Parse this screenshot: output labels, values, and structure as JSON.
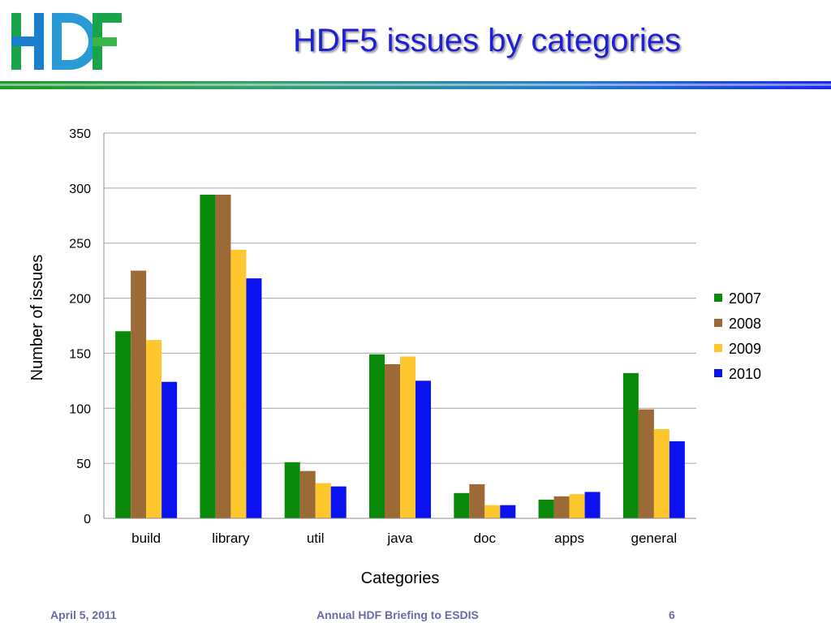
{
  "slide": {
    "logo_text": "HDF",
    "title": "HDF5 issues by categories"
  },
  "footer": {
    "date": "April 5, 2011",
    "center": "Annual HDF Briefing to ESDIS",
    "page": "6"
  },
  "chart_data": {
    "type": "bar",
    "title": "",
    "xlabel": "Categories",
    "ylabel": "Number of issues",
    "categories": [
      "build",
      "library",
      "util",
      "java",
      "doc",
      "apps",
      "general"
    ],
    "series": [
      {
        "name": "2007",
        "color": "#0a8a0a",
        "values": [
          170,
          294,
          51,
          149,
          23,
          17,
          132
        ]
      },
      {
        "name": "2008",
        "color": "#9c6a36",
        "values": [
          225,
          294,
          43,
          140,
          31,
          20,
          99
        ]
      },
      {
        "name": "2009",
        "color": "#ffc72e",
        "values": [
          162,
          244,
          32,
          147,
          12,
          22,
          81
        ]
      },
      {
        "name": "2010",
        "color": "#0a12f0",
        "values": [
          124,
          218,
          29,
          125,
          12,
          24,
          70
        ]
      }
    ],
    "ylim": [
      0,
      350
    ],
    "yticks": [
      0,
      50,
      100,
      150,
      200,
      250,
      300,
      350
    ],
    "grid": true,
    "legend_position": "right"
  }
}
